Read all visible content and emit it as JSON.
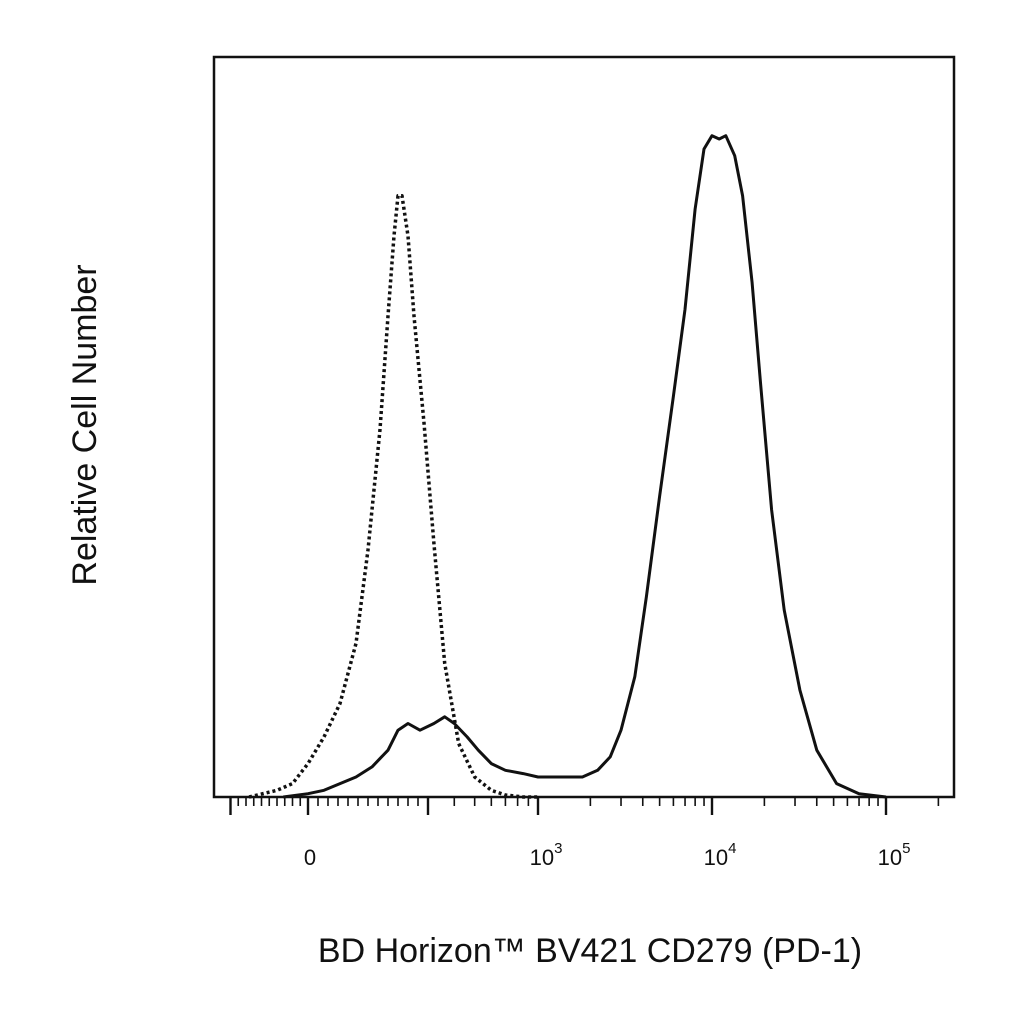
{
  "chart_data": {
    "type": "line",
    "title": "",
    "xlabel": "BD Horizon™ BV421 CD279 (PD-1)",
    "ylabel": "Relative Cell Number",
    "x_scale": "biexponential",
    "xlim": [
      -300,
      200000
    ],
    "ylim": [
      0,
      1.0
    ],
    "grid": false,
    "legend": "none",
    "x_ticks": [
      {
        "value": 0,
        "base": "0",
        "exp": ""
      },
      {
        "value": 1000,
        "base": "10",
        "exp": "3"
      },
      {
        "value": 10000,
        "base": "10",
        "exp": "4"
      },
      {
        "value": 100000,
        "base": "10",
        "exp": "5"
      }
    ],
    "series": [
      {
        "style": "dotted",
        "color": "#111111",
        "x": [
          -190,
          -100,
          -50,
          0,
          40,
          80,
          120,
          150,
          180,
          200,
          215,
          225,
          235,
          250,
          265,
          290,
          320,
          360,
          420,
          500,
          600,
          700,
          850,
          1000
        ],
        "y": [
          0.0,
          0.01,
          0.02,
          0.05,
          0.09,
          0.14,
          0.23,
          0.37,
          0.55,
          0.72,
          0.84,
          0.9,
          0.9,
          0.84,
          0.72,
          0.56,
          0.38,
          0.2,
          0.08,
          0.03,
          0.01,
          0.003,
          0.0,
          0.0
        ]
      },
      {
        "style": "solid",
        "color": "#111111",
        "x": [
          -80,
          0,
          40,
          80,
          120,
          160,
          200,
          225,
          250,
          280,
          320,
          360,
          400,
          460,
          520,
          600,
          700,
          850,
          1000,
          1200,
          1500,
          1800,
          2200,
          2600,
          3000,
          3600,
          4200,
          5000,
          6000,
          7000,
          8000,
          9000,
          10000,
          11000,
          12000,
          13500,
          15000,
          17000,
          19000,
          22000,
          26000,
          32000,
          40000,
          52000,
          70000,
          100000
        ],
        "y": [
          0.0,
          0.005,
          0.01,
          0.02,
          0.03,
          0.045,
          0.07,
          0.1,
          0.11,
          0.1,
          0.11,
          0.12,
          0.11,
          0.09,
          0.07,
          0.05,
          0.04,
          0.035,
          0.03,
          0.03,
          0.03,
          0.03,
          0.04,
          0.06,
          0.1,
          0.18,
          0.3,
          0.45,
          0.6,
          0.73,
          0.88,
          0.97,
          0.99,
          0.985,
          0.99,
          0.96,
          0.9,
          0.77,
          0.62,
          0.43,
          0.28,
          0.16,
          0.07,
          0.02,
          0.005,
          0.0
        ]
      }
    ]
  }
}
